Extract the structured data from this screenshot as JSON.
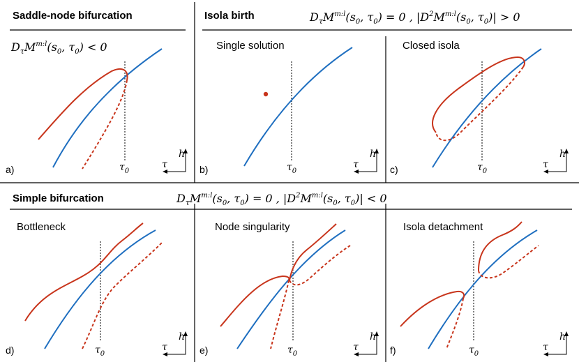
{
  "headers": {
    "saddle_node": "Saddle-node bifurcation",
    "isola_birth": "Isola birth",
    "simple": "Simple bifurcation"
  },
  "conditions": {
    "saddle_node": "DτM^{m:l}(s0,τ0) < 0",
    "isola_birth": "DτM^{m:l}(s0,τ0) = 0 , |D²M^{m:l}(s0,τ0)| > 0",
    "simple": "DτM^{m:l}(s0,τ0) = 0 , |D²M^{m:l}(s0,τ0)| < 0"
  },
  "panels": [
    {
      "id": "a",
      "label": "a)",
      "title": ""
    },
    {
      "id": "b",
      "label": "b)",
      "title": "Single solution"
    },
    {
      "id": "c",
      "label": "c)",
      "title": "Closed isola"
    },
    {
      "id": "d",
      "label": "d)",
      "title": "Bottleneck"
    },
    {
      "id": "e",
      "label": "e)",
      "title": "Node singularity"
    },
    {
      "id": "f",
      "label": "f)",
      "title": "Isola detachment"
    }
  ],
  "axis": {
    "tau0": "τ0",
    "tau": "τ",
    "h": "h"
  },
  "colors": {
    "branch": "#1f6fc0",
    "response": "#c8351c"
  }
}
